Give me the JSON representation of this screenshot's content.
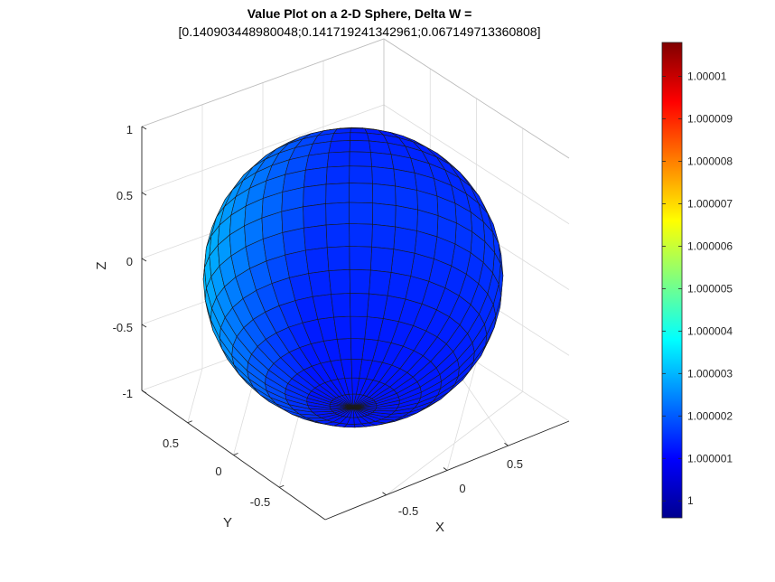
{
  "chart_data": {
    "type": "surface",
    "title": {
      "line1": "Value Plot on a 2-D Sphere, Delta W =",
      "line2": "[0.140903448980048;0.141719241342961;0.067149713360808]"
    },
    "xlabel": "X",
    "ylabel": "Y",
    "zlabel": "Z",
    "xlim": [
      -1,
      1
    ],
    "ylim": [
      -1,
      1
    ],
    "zlim": [
      -1,
      1
    ],
    "x_ticks": [
      "-0.5",
      "0",
      "0.5"
    ],
    "y_ticks": [
      "-0.5",
      "0",
      "0.5"
    ],
    "z_ticks": [
      "-1",
      "-0.5",
      "0",
      "0.5",
      "1"
    ],
    "grid": true,
    "colormap": "jet",
    "colorbar": {
      "location": "right",
      "range": [
        0.9999996,
        1.0000108
      ],
      "ticks": [
        {
          "value": 1.0,
          "label": "1"
        },
        {
          "value": 1.000001,
          "label": "1.000001"
        },
        {
          "value": 1.000002,
          "label": "1.000002"
        },
        {
          "value": 1.000003,
          "label": "1.000003"
        },
        {
          "value": 1.000004,
          "label": "1.000004"
        },
        {
          "value": 1.000005,
          "label": "1.000005"
        },
        {
          "value": 1.000006,
          "label": "1.000006"
        },
        {
          "value": 1.000007,
          "label": "1.000007"
        },
        {
          "value": 1.000008,
          "label": "1.000008"
        },
        {
          "value": 1.000009,
          "label": "1.000009"
        },
        {
          "value": 1.00001,
          "label": "1.00001"
        }
      ]
    },
    "surface": {
      "shape": "unit sphere",
      "value_min": 0.9999996,
      "value_max": 1.0000108
    }
  }
}
